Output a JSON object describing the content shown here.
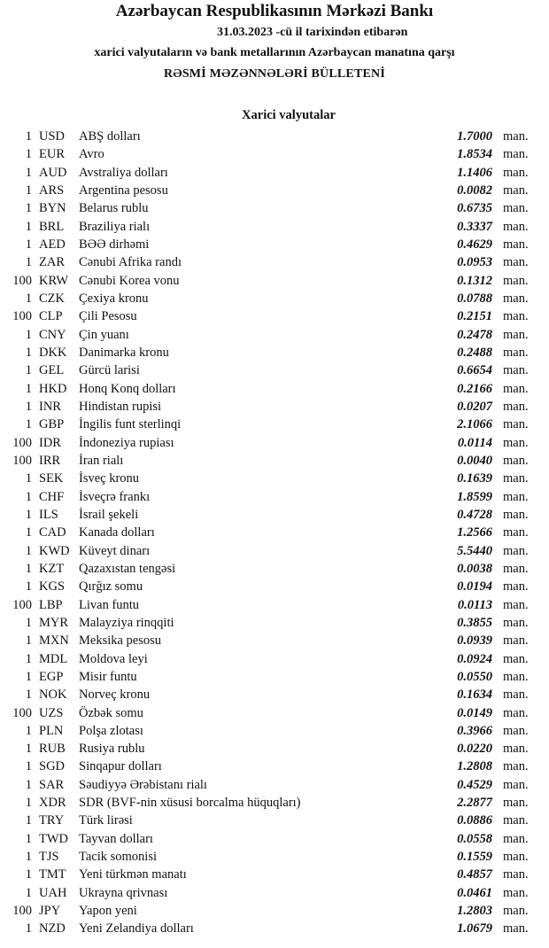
{
  "header": {
    "bank": "Azərbaycan Respublikasının Mərkəzi Bankı",
    "date_line": "31.03.2023  -cü il tarixindən etibarən",
    "subtitle": "xarici valyutaların və bank metallarının Azərbaycan manatına qarşı",
    "title": "RƏSMİ MƏZƏNNƏLƏRİ BÜLLETENİ",
    "section": "Xarici valyutalar"
  },
  "unit": "man.",
  "rates": [
    [
      "1",
      "USD",
      "ABŞ dolları",
      "1.7000"
    ],
    [
      "1",
      "EUR",
      "Avro",
      "1.8534"
    ],
    [
      "1",
      "AUD",
      "Avstraliya dolları",
      "1.1406"
    ],
    [
      "1",
      "ARS",
      "Argentina pesosu",
      "0.0082"
    ],
    [
      "1",
      "BYN",
      "Belarus rublu",
      "0.6735"
    ],
    [
      "1",
      "BRL",
      "Braziliya rialı",
      "0.3337"
    ],
    [
      "1",
      "AED",
      "BƏƏ dirhəmi",
      "0.4629"
    ],
    [
      "1",
      "ZAR",
      "Cənubi Afrika randı",
      "0.0953"
    ],
    [
      "100",
      "KRW",
      "Cənubi Korea vonu",
      "0.1312"
    ],
    [
      "1",
      "CZK",
      "Çexiya kronu",
      "0.0788"
    ],
    [
      "100",
      "CLP",
      "Çili Pesosu",
      "0.2151"
    ],
    [
      "1",
      "CNY",
      "Çin yuanı",
      "0.2478"
    ],
    [
      "1",
      "DKK",
      "Danimarka kronu",
      "0.2488"
    ],
    [
      "1",
      "GEL",
      "Gürcü larisi",
      "0.6654"
    ],
    [
      "1",
      "HKD",
      "Honq Konq dolları",
      "0.2166"
    ],
    [
      "1",
      "INR",
      "Hindistan rupisi",
      "0.0207"
    ],
    [
      "1",
      "GBP",
      "İngilis funt sterlinqi",
      "2.1066"
    ],
    [
      "100",
      "IDR",
      "İndoneziya rupiası",
      "0.0114"
    ],
    [
      "100",
      "IRR",
      "İran rialı",
      "0.0040"
    ],
    [
      "1",
      "SEK",
      "İsveç kronu",
      "0.1639"
    ],
    [
      "1",
      "CHF",
      "İsveçrə frankı",
      "1.8599"
    ],
    [
      "1",
      "ILS",
      "İsrail şekeli",
      "0.4728"
    ],
    [
      "1",
      "CAD",
      "Kanada dolları",
      "1.2566"
    ],
    [
      "1",
      "KWD",
      "Küveyt dinarı",
      "5.5440"
    ],
    [
      "1",
      "KZT",
      "Qazaxıstan tengəsi",
      "0.0038"
    ],
    [
      "1",
      "KGS",
      "Qırğız somu",
      "0.0194"
    ],
    [
      "100",
      "LBP",
      "Livan funtu",
      "0.0113"
    ],
    [
      "1",
      "MYR",
      "Malayziya rinqqiti",
      "0.3855"
    ],
    [
      "1",
      "MXN",
      "Meksika pesosu",
      "0.0939"
    ],
    [
      "1",
      "MDL",
      "Moldova leyi",
      "0.0924"
    ],
    [
      "1",
      "EGP",
      "Misir funtu",
      "0.0550"
    ],
    [
      "1",
      "NOK",
      "Norveç kronu",
      "0.1634"
    ],
    [
      "100",
      "UZS",
      "Özbək somu",
      "0.0149"
    ],
    [
      "1",
      "PLN",
      "Polşa zlotası",
      "0.3966"
    ],
    [
      "1",
      "RUB",
      "Rusiya rublu",
      "0.0220"
    ],
    [
      "1",
      "SGD",
      "Sinqapur dolları",
      "1.2808"
    ],
    [
      "1",
      "SAR",
      "Səudiyyə Ərəbistanı rialı",
      "0.4529"
    ],
    [
      "1",
      "XDR",
      "SDR (BVF-nin xüsusi borcalma hüquqları)",
      "2.2877"
    ],
    [
      "1",
      "TRY",
      "Türk lirəsi",
      "0.0886"
    ],
    [
      "1",
      "TWD",
      "Tayvan dolları",
      "0.0558"
    ],
    [
      "1",
      "TJS",
      "Tacik somonisi",
      "0.1559"
    ],
    [
      "1",
      "TMT",
      "Yeni türkmən manatı",
      "0.4857"
    ],
    [
      "1",
      "UAH",
      "Ukrayna qrivnası",
      "0.0461"
    ],
    [
      "100",
      "JPY",
      "Yapon yeni",
      "1.2803"
    ],
    [
      "1",
      "NZD",
      "Yeni Zelandiya dolları",
      "1.0679"
    ]
  ]
}
